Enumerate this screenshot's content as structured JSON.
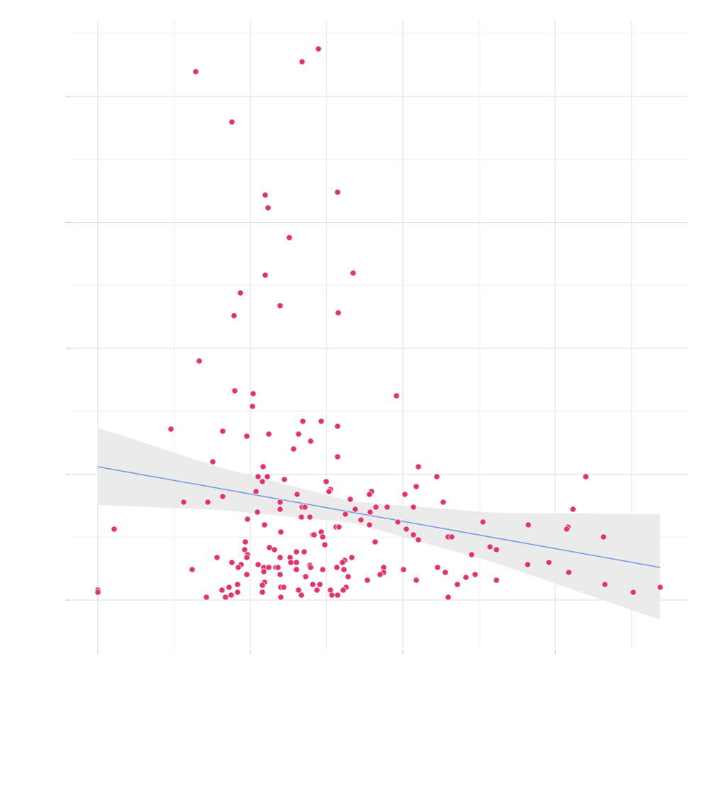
{
  "chart_data": {
    "type": "scatter",
    "xlim": [
      -40,
      832
    ],
    "ylim": [
      -72,
      818
    ],
    "xticks": [
      0,
      215,
      430,
      645
    ],
    "yticks": [
      0,
      177.5,
      355,
      532.5,
      710
    ],
    "xminor_ticks": [
      107.5,
      322.5,
      537.5,
      752.5
    ],
    "yminor_ticks": [
      88.75,
      266.25,
      443.75,
      621.25,
      798.75
    ],
    "grid": true,
    "series": [
      {
        "color": "#e8306b",
        "x": [
          311,
          288,
          138,
          189,
          236,
          338,
          240,
          270,
          236,
          360,
          201,
          257,
          339,
          192,
          143,
          193,
          219,
          421,
          218,
          289,
          315,
          103,
          176,
          338,
          283,
          241,
          210,
          300,
          276,
          338,
          162,
          233,
          452,
          226,
          239,
          478,
          688,
          232,
          263,
          322,
          449,
          328,
          326,
          223,
          386,
          383,
          433,
          281,
          176,
          121,
          155,
          257,
          356,
          487,
          288,
          292,
          363,
          392,
          408,
          445,
          670,
          225,
          257,
          384,
          349,
          287,
          299,
          371,
          211,
          423,
          543,
          235,
          383,
          607,
          336,
          340,
          663,
          661,
          23,
          435,
          258,
          315,
          303,
          305,
          445,
          317,
          494,
          499,
          713,
          452,
          208,
          391,
          320,
          242,
          553,
          562,
          249,
          207,
          280,
          291,
          527,
          211,
          168,
          210,
          257,
          271,
          358,
          189,
          272,
          280,
          348,
          345,
          636,
          606,
          226,
          202,
          198,
          234,
          241,
          251,
          254,
          299,
          300,
          337,
          403,
          479,
          133,
          234,
          280,
          317,
          347,
          431,
          490,
          664,
          403,
          398,
          532,
          210,
          257,
          293,
          353,
          519,
          380,
          449,
          562,
          235,
          232,
          303,
          313,
          507,
          715,
          197,
          258,
          262,
          350,
          793,
          185,
          175,
          283,
          309,
          328,
          346,
          0,
          0,
          197,
          232,
          188,
          287,
          330,
          338,
          755,
          153,
          180,
          258,
          494
        ],
        "values": [
          777,
          759,
          745,
          674,
          571,
          575,
          553,
          511,
          458,
          461,
          433,
          415,
          405,
          401,
          337,
          295,
          291,
          288,
          273,
          252,
          252,
          241,
          238,
          245,
          234,
          234,
          231,
          224,
          213,
          202,
          195,
          188,
          188,
          174,
          174,
          174,
          174,
          167,
          170,
          167,
          160,
          156,
          153,
          153,
          153,
          149,
          149,
          149,
          146,
          138,
          138,
          138,
          142,
          138,
          131,
          131,
          128,
          131,
          131,
          131,
          128,
          124,
          128,
          124,
          121,
          117,
          117,
          113,
          114,
          110,
          110,
          106,
          106,
          106,
          103,
          103,
          103,
          100,
          100,
          100,
          96,
          96,
          92,
          92,
          92,
          89,
          89,
          89,
          89,
          85,
          82,
          82,
          78,
          74,
          75,
          71,
          71,
          71,
          68,
          68,
          64,
          64,
          60,
          60,
          60,
          60,
          60,
          53,
          53,
          53,
          56,
          53,
          53,
          50,
          50,
          50,
          46,
          46,
          46,
          46,
          46,
          49,
          46,
          46,
          46,
          46,
          43,
          40,
          43,
          43,
          43,
          43,
          39,
          39,
          39,
          36,
          36,
          36,
          36,
          33,
          33,
          32,
          28,
          28,
          28,
          25,
          21,
          22,
          22,
          22,
          22,
          22,
          18,
          18,
          18,
          18,
          18,
          14,
          14,
          14,
          14,
          14,
          14,
          11,
          11,
          11,
          7,
          7,
          7,
          7,
          11,
          4,
          4,
          4,
          4
        ]
      }
    ],
    "trend": {
      "color": "#7396ea",
      "x": [
        0,
        793
      ],
      "y": [
        188,
        46
      ]
    },
    "band": {
      "color": "#ebebeb",
      "x": [
        0,
        172,
        359,
        559,
        793
      ],
      "upper": [
        243,
        187,
        139,
        123,
        121
      ],
      "lower": [
        134,
        127,
        109,
        53,
        -28
      ]
    }
  }
}
